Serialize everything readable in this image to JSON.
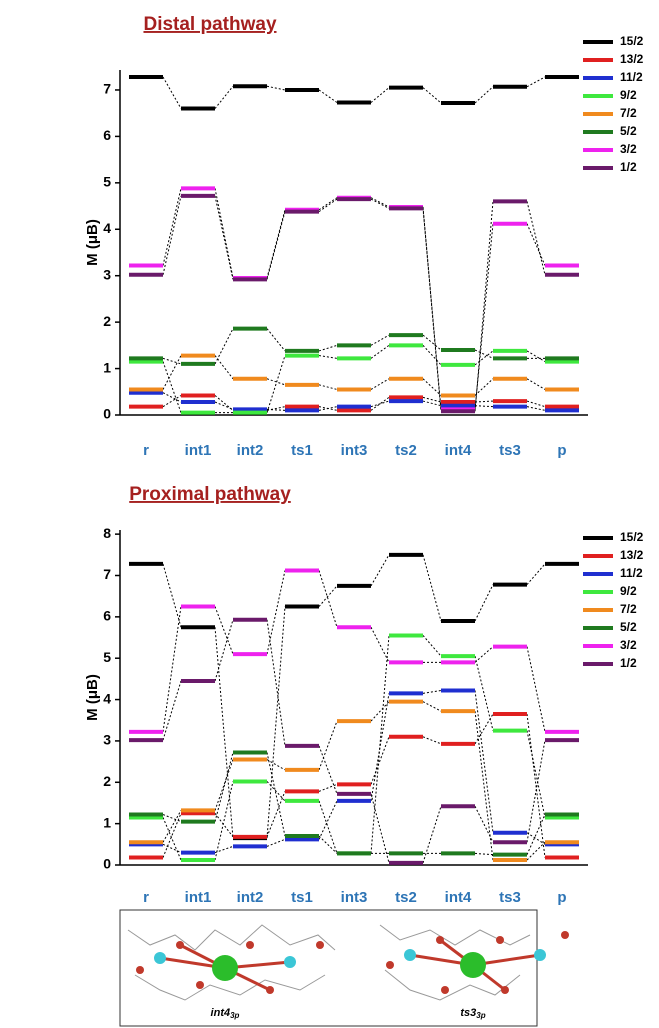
{
  "chart_data": [
    {
      "type": "level",
      "title": "Distal pathway",
      "y_label": "M (μB)",
      "categories": [
        "r",
        "int1",
        "int2",
        "ts1",
        "int3",
        "ts2",
        "int4",
        "ts3",
        "p"
      ],
      "ylim": [
        0,
        7.43
      ],
      "yticks": [
        0,
        1,
        2,
        3,
        4,
        5,
        6,
        7
      ],
      "series": [
        {
          "name": "15/2",
          "color": "#000000",
          "values": [
            7.28,
            6.6,
            7.08,
            7.0,
            6.73,
            7.05,
            6.72,
            7.07,
            7.28
          ]
        },
        {
          "name": "13/2",
          "color": "#e02020",
          "values": [
            0.18,
            0.42,
            0.1,
            0.18,
            0.1,
            0.38,
            0.28,
            0.3,
            0.18
          ]
        },
        {
          "name": "11/2",
          "color": "#1f2fd0",
          "values": [
            0.48,
            0.28,
            0.12,
            0.1,
            0.18,
            0.3,
            0.2,
            0.18,
            0.1
          ]
        },
        {
          "name": "9/2",
          "color": "#3ee83e",
          "values": [
            1.15,
            0.05,
            0.05,
            1.28,
            1.22,
            1.5,
            1.08,
            1.38,
            1.15
          ]
        },
        {
          "name": "7/2",
          "color": "#f08a1e",
          "values": [
            0.55,
            1.28,
            0.78,
            0.65,
            0.55,
            0.78,
            0.42,
            0.78,
            0.55
          ]
        },
        {
          "name": "5/2",
          "color": "#1f7a1f",
          "values": [
            1.22,
            1.1,
            1.86,
            1.38,
            1.5,
            1.72,
            1.4,
            1.22,
            1.22
          ]
        },
        {
          "name": "3/2",
          "color": "#ee22ee",
          "values": [
            3.22,
            4.88,
            2.95,
            4.42,
            4.68,
            4.48,
            0.12,
            4.12,
            3.22
          ]
        },
        {
          "name": "1/2",
          "color": "#6a1a6a",
          "values": [
            3.02,
            4.72,
            2.92,
            4.38,
            4.65,
            4.45,
            0.08,
            4.6,
            3.02
          ]
        }
      ]
    },
    {
      "type": "level",
      "title": "Proximal pathway",
      "y_label": "M (μB)",
      "categories": [
        "r",
        "int1",
        "int2",
        "ts1",
        "int3",
        "ts2",
        "int4",
        "ts3",
        "p"
      ],
      "ylim": [
        0,
        8.1
      ],
      "yticks": [
        0,
        1,
        2,
        3,
        4,
        5,
        6,
        7,
        8
      ],
      "series": [
        {
          "name": "15/2",
          "color": "#000000",
          "values": [
            7.28,
            5.75,
            0.65,
            6.25,
            6.75,
            7.5,
            5.9,
            6.78,
            7.28
          ]
        },
        {
          "name": "13/2",
          "color": "#e02020",
          "values": [
            0.18,
            1.25,
            0.68,
            1.78,
            1.95,
            3.1,
            2.93,
            3.65,
            0.18
          ]
        },
        {
          "name": "11/2",
          "color": "#1f2fd0",
          "values": [
            0.5,
            0.3,
            0.45,
            0.62,
            1.55,
            4.15,
            4.22,
            0.78,
            0.5
          ]
        },
        {
          "name": "9/2",
          "color": "#3ee83e",
          "values": [
            1.15,
            0.12,
            2.02,
            1.55,
            0.28,
            5.55,
            5.05,
            3.25,
            1.15
          ]
        },
        {
          "name": "7/2",
          "color": "#f08a1e",
          "values": [
            0.55,
            1.32,
            2.55,
            2.3,
            3.48,
            3.95,
            3.72,
            0.12,
            0.55
          ]
        },
        {
          "name": "5/2",
          "color": "#1f7a1f",
          "values": [
            1.22,
            1.05,
            2.72,
            0.7,
            0.28,
            0.28,
            0.28,
            0.25,
            1.22
          ]
        },
        {
          "name": "3/2",
          "color": "#ee22ee",
          "values": [
            3.22,
            6.25,
            5.1,
            7.12,
            5.75,
            4.9,
            4.9,
            5.28,
            3.22
          ]
        },
        {
          "name": "1/2",
          "color": "#6a1a6a",
          "values": [
            3.02,
            4.45,
            5.93,
            2.88,
            1.72,
            0.05,
            1.42,
            0.55,
            3.02
          ]
        }
      ]
    }
  ],
  "structures": [
    {
      "label": "int4",
      "subscript": "3p"
    },
    {
      "label": "ts3",
      "subscript": "3p"
    }
  ]
}
